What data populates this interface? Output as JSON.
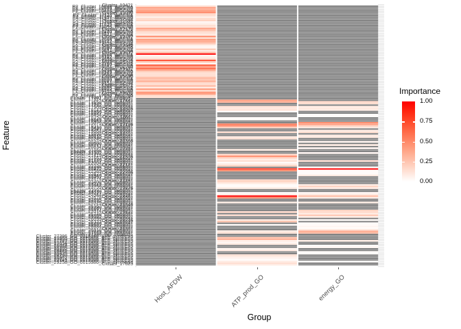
{
  "figure": {
    "y_axis_title": "Feature",
    "x_axis_title": "Group",
    "legend": {
      "title": "Importance",
      "ticks": [
        "1.00",
        "0.75",
        "0.50",
        "0.25",
        "0.00"
      ],
      "tick_values": [
        1.0,
        0.75,
        0.5,
        0.25,
        0.0
      ]
    }
  },
  "chart_data": {
    "type": "heatmap",
    "title": "",
    "xlabel": "Group",
    "ylabel": "Feature",
    "legend_position": "right",
    "grid": false,
    "categories_x": [
      "Host_AFDW",
      "ATP_prod_GO",
      "energy_GO"
    ],
    "n_rows": 163,
    "row_label_rule": {
      "comment_visible_label": "Cluster_17823",
      "prefix": "Cluster_",
      "id_start": 10421,
      "id_step": 117,
      "top_rows": 58,
      "bottom_start": 145,
      "top_prefix": "P2_",
      "top_suffix": "_WGCNA",
      "mid_suffix": "_GO_0006091",
      "bottom_suffix": "_GO_0015986_ATP_synthesis",
      "last_row_label": "Cluster_17823"
    },
    "scale": {
      "min": 0,
      "max": 1,
      "low": "#FFFFFF",
      "high": "#FF0000",
      "na": "#7F7F7F"
    },
    "series": [
      {
        "name": "Host_AFDW",
        "offset": 0,
        "values": [
          0.15,
          0.45,
          0.4,
          0.45,
          0.55,
          0.2,
          0.15,
          0.08,
          0.2,
          0.2,
          0.05,
          0.08,
          0.15,
          0.15,
          0.45,
          0.3,
          0.2,
          0.15,
          0.1,
          0.5,
          0.2,
          0.45,
          0.4,
          0.35,
          0.15,
          0.05,
          0.05,
          0.25,
          0.1,
          0.3,
          1.0,
          0.05,
          0.1,
          0.15,
          0.75,
          0.25,
          0.05,
          0.7,
          0.5,
          0.65,
          0.45,
          0.25,
          0.15,
          0.15,
          0.2,
          0.35,
          0.25,
          0.4,
          0.2,
          0.15,
          0.35,
          0.1,
          0.45,
          0.2,
          0.5,
          0.45,
          0.2,
          0.15
        ]
      },
      {
        "name": "ATP_prod_GO",
        "offset": 58,
        "values": [
          null,
          0.45,
          0.4,
          null,
          null,
          0.15,
          0.1,
          0.15,
          0.02,
          null,
          null,
          null,
          0.02,
          0.02,
          null,
          null,
          0.6,
          0.55,
          0.2,
          null,
          null,
          0.15,
          null,
          null,
          0.1,
          0.15,
          null,
          null,
          null,
          null,
          null,
          null,
          0.1,
          null,
          null,
          0.2,
          0.5,
          0.25,
          0.1,
          0.15,
          0.02,
          0.1,
          0.2,
          null,
          0.85,
          0.5,
          null,
          null,
          null,
          null,
          null,
          0.2,
          0.2,
          0.1,
          0.02,
          0.02,
          0.1,
          null,
          null,
          0.02,
          0.1,
          1.0,
          0.55,
          null,
          null,
          0.1,
          null,
          null,
          null,
          null,
          null,
          0.2,
          null,
          0.15,
          null,
          null,
          0.1,
          0.3,
          null,
          0.02,
          null,
          null,
          null,
          0.1,
          0.15,
          null,
          null,
          0.3,
          0.35,
          0.1,
          0.05,
          0.1,
          null,
          null,
          0.05,
          0.1,
          null,
          null,
          0.15,
          0.1,
          0.05,
          0.02,
          0.1,
          0.15,
          0.1
        ]
      },
      {
        "name": "energy_GO",
        "offset": 58,
        "values": [
          null,
          null,
          0.2,
          0.15,
          null,
          0.1,
          0.1,
          0.1,
          null,
          null,
          0.02,
          0.02,
          null,
          null,
          null,
          0.5,
          0.45,
          0.25,
          0.1,
          null,
          0.1,
          0.15,
          null,
          0.1,
          0.1,
          null,
          null,
          0.05,
          null,
          0.1,
          null,
          0.05,
          null,
          null,
          0.05,
          null,
          null,
          null,
          null,
          0.15,
          null,
          null,
          null,
          0.02,
          1.0,
          0.02,
          0.02,
          0.02,
          0.1,
          null,
          null,
          null,
          null,
          null,
          0.1,
          0.2,
          0.1,
          null,
          null,
          0.05,
          0.1,
          0.3,
          0.1,
          null,
          null,
          0.1,
          null,
          null,
          null,
          null,
          0.2,
          0.2,
          0.1,
          0.25,
          0.1,
          null,
          0.02,
          null,
          0.02,
          0.02,
          0.05,
          0.02,
          0.1,
          0.4,
          0.35,
          null,
          null,
          null,
          null,
          0.1,
          null,
          null,
          0.02,
          0.05,
          null,
          null,
          0.02,
          0.02,
          null,
          null,
          null,
          null,
          0.02,
          null,
          null
        ]
      }
    ]
  }
}
